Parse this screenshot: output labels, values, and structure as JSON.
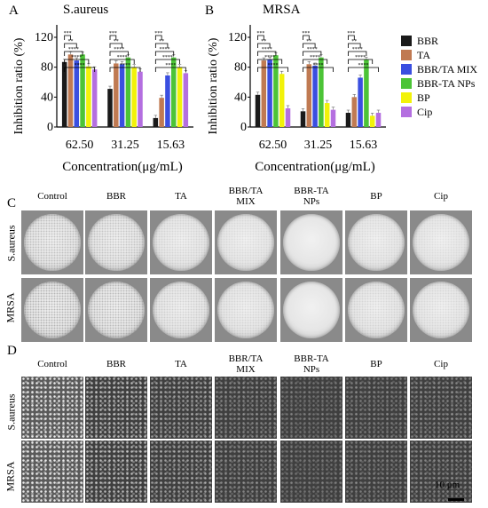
{
  "panels": {
    "a": {
      "letter": "A",
      "title": "S.aureus"
    },
    "b": {
      "letter": "B",
      "title": "MRSA"
    },
    "c": {
      "letter": "C"
    },
    "d": {
      "letter": "D"
    }
  },
  "axes": {
    "ylabel": "Inhibition ratio (%)",
    "xlabel": "Concentration(μg/mL)",
    "yticks": [
      "0",
      "40",
      "80",
      "120"
    ]
  },
  "legend": [
    {
      "name": "BBR",
      "color": "#1a1a1a"
    },
    {
      "name": "TA",
      "color": "#c07a52"
    },
    {
      "name": "BBR/TA MIX",
      "color": "#3a4fe0"
    },
    {
      "name": "BBR-TA NPs",
      "color": "#4cc437"
    },
    {
      "name": "BP",
      "color": "#f2f20a"
    },
    {
      "name": "Cip",
      "color": "#b46fe0"
    }
  ],
  "significance": {
    "stars2": "**",
    "stars3": "***",
    "stars4": "****"
  },
  "chart_data": [
    {
      "type": "bar",
      "title": "S.aureus",
      "xlabel": "Concentration(μg/mL)",
      "ylabel": "Inhibition ratio (%)",
      "ylim": [
        0,
        120
      ],
      "categories": [
        "62.50",
        "31.25",
        "15.63"
      ],
      "series": [
        {
          "name": "BBR",
          "values": [
            87,
            51,
            12
          ]
        },
        {
          "name": "TA",
          "values": [
            97,
            85,
            39
          ]
        },
        {
          "name": "BBR/TA MIX",
          "values": [
            89,
            84,
            69
          ]
        },
        {
          "name": "BBR-TA NPs",
          "values": [
            97,
            93,
            93
          ]
        },
        {
          "name": "BP",
          "values": [
            81,
            80,
            80
          ]
        },
        {
          "name": "Cip",
          "values": [
            77,
            74,
            72
          ]
        }
      ]
    },
    {
      "type": "bar",
      "title": "MRSA",
      "xlabel": "Concentration(μg/mL)",
      "ylabel": "Inhibition ratio (%)",
      "ylim": [
        0,
        120
      ],
      "categories": [
        "62.50",
        "31.25",
        "15.63"
      ],
      "series": [
        {
          "name": "BBR",
          "values": [
            43,
            21,
            19
          ]
        },
        {
          "name": "TA",
          "values": [
            89,
            84,
            40
          ]
        },
        {
          "name": "BBR/TA MIX",
          "values": [
            90,
            82,
            66
          ]
        },
        {
          "name": "BBR-TA NPs",
          "values": [
            96,
            93,
            90
          ]
        },
        {
          "name": "BP",
          "values": [
            71,
            32,
            15
          ]
        },
        {
          "name": "Cip",
          "values": [
            25,
            23,
            19
          ]
        }
      ]
    }
  ],
  "photo_columns": [
    "Control",
    "BBR",
    "TA",
    "BBR/TA\nMIX",
    "BBR-TA\nNPs",
    "BP",
    "Cip"
  ],
  "photo_rows": [
    "S.aureus",
    "MRSA"
  ],
  "scale_bar": "10 μm"
}
